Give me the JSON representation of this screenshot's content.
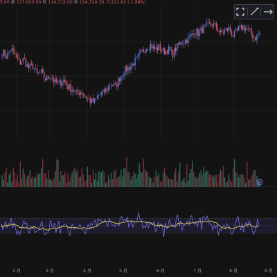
{
  "ohlc_bar": {
    "open_value": "5.00",
    "high_label": "高",
    "high_value": "117,000.00",
    "low_label": "低",
    "low_value": "114,712.00",
    "close_label": "收",
    "close_value": "114,724.36",
    "change_value": "-3,211.62",
    "change_pct": "(-1.88%)"
  },
  "toolbar": {
    "expand_icon": "expand-icon",
    "draw_icon": "pencil-line-icon",
    "fit_icon": "horizontal-fit-icon"
  },
  "colors": {
    "background": "#131313",
    "candle_up": "#5b7bd8",
    "candle_down": "#e05b6a",
    "vol_up": "#2f6b5a",
    "vol_down": "#7a2f38",
    "rsi_line": "#7b6fe0",
    "rsi_ma": "#d9c25a",
    "rsi_band": "#1d1b2e",
    "marker": "#8c6fe0"
  },
  "chart_data": {
    "type": "candlestick",
    "x_axis_labels": [
      "2 月",
      "3 月",
      "4 月",
      "5 月",
      "6 月",
      "7 月",
      "8 月",
      "9 月"
    ],
    "price_ylim": [
      0,
      100
    ],
    "close_path": [
      [
        0,
        72
      ],
      [
        3,
        68
      ],
      [
        6,
        74
      ],
      [
        9,
        70
      ],
      [
        12,
        62
      ],
      [
        15,
        66
      ],
      [
        18,
        58
      ],
      [
        21,
        60
      ],
      [
        24,
        52
      ],
      [
        27,
        54
      ],
      [
        30,
        48
      ],
      [
        33,
        52
      ],
      [
        36,
        46
      ],
      [
        39,
        44
      ],
      [
        42,
        48
      ],
      [
        45,
        42
      ],
      [
        48,
        40
      ],
      [
        51,
        36
      ],
      [
        54,
        38
      ],
      [
        57,
        34
      ],
      [
        60,
        30
      ],
      [
        63,
        28
      ],
      [
        66,
        34
      ],
      [
        69,
        36
      ],
      [
        72,
        40
      ],
      [
        75,
        44
      ],
      [
        78,
        42
      ],
      [
        81,
        50
      ],
      [
        84,
        56
      ],
      [
        87,
        58
      ],
      [
        90,
        62
      ],
      [
        93,
        66
      ],
      [
        96,
        72
      ],
      [
        99,
        76
      ],
      [
        102,
        78
      ],
      [
        105,
        74
      ],
      [
        108,
        76
      ],
      [
        111,
        72
      ],
      [
        114,
        74
      ],
      [
        117,
        70
      ],
      [
        120,
        76
      ],
      [
        123,
        80
      ],
      [
        126,
        82
      ],
      [
        129,
        84
      ],
      [
        132,
        90
      ],
      [
        135,
        88
      ],
      [
        138,
        92
      ],
      [
        141,
        94
      ],
      [
        144,
        96
      ],
      [
        147,
        94
      ],
      [
        150,
        88
      ],
      [
        153,
        90
      ],
      [
        156,
        92
      ],
      [
        159,
        86
      ],
      [
        162,
        90
      ],
      [
        165,
        94
      ],
      [
        168,
        92
      ],
      [
        171,
        88
      ],
      [
        174,
        84
      ],
      [
        177,
        88
      ]
    ],
    "rsi_ylim": [
      0,
      100
    ],
    "rsi_upper_band": 70,
    "rsi_lower_band": 30
  }
}
